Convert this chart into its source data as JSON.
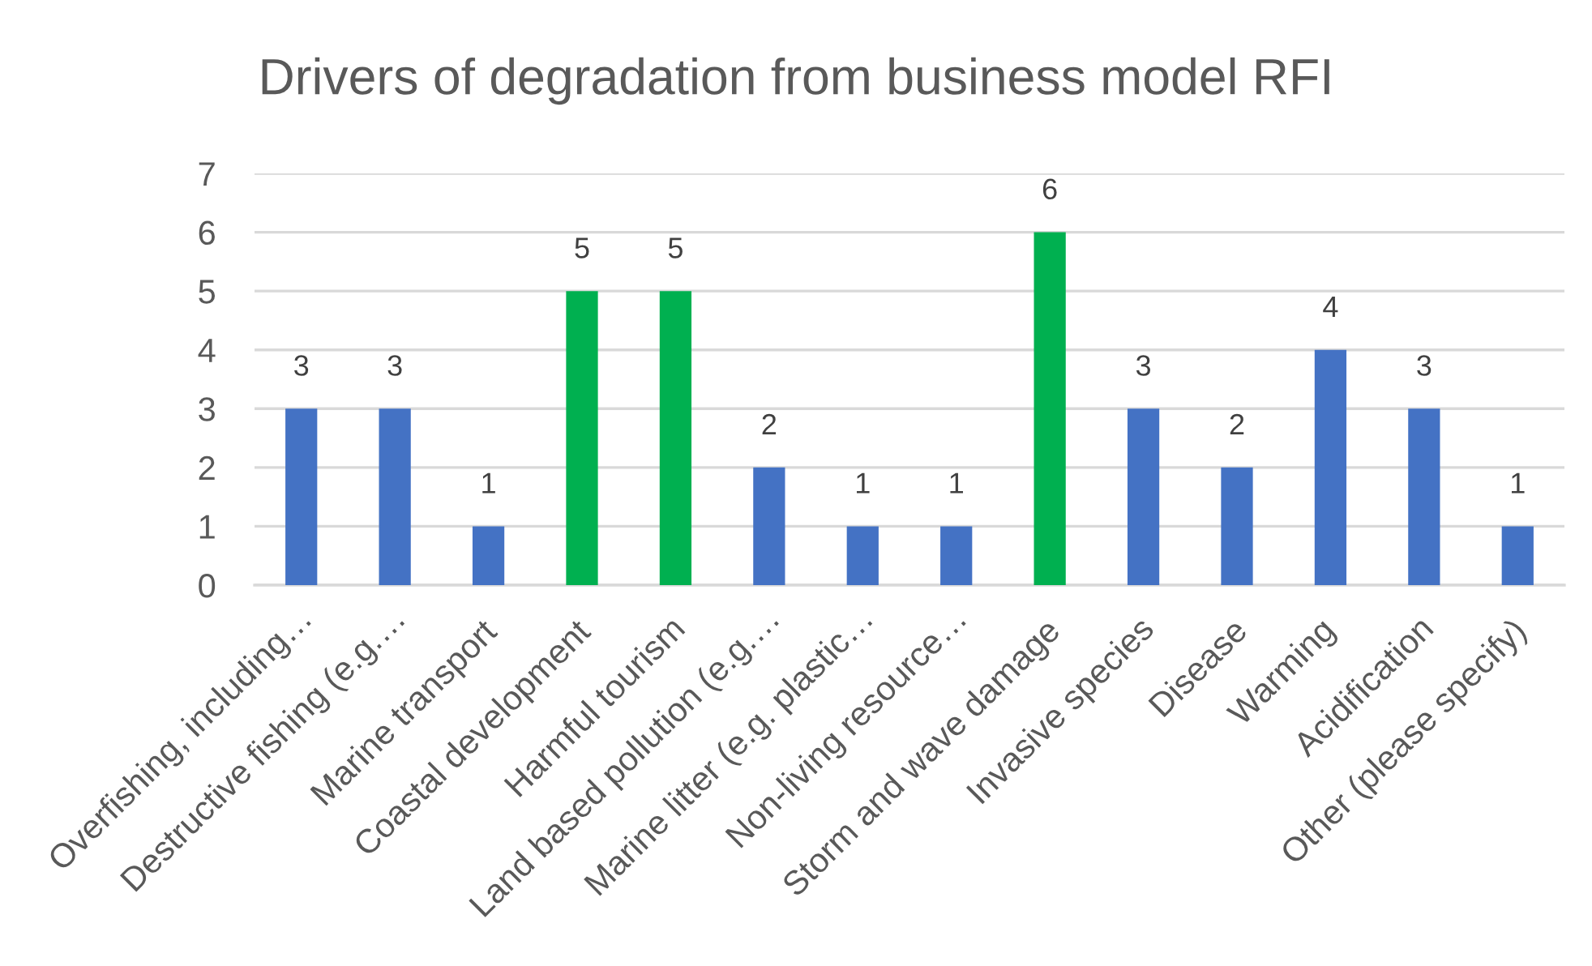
{
  "chart_data": {
    "type": "bar",
    "title": "Drivers of degradation from business model RFI",
    "categories": [
      "Overfishing, including…",
      "Destructive fishing (e.g.…",
      "Marine transport",
      "Coastal development",
      "Harmful tourism",
      "Land based pollution (e.g.…",
      "Marine litter (e.g. plastic…",
      "Non-living resource…",
      "Storm and wave damage",
      "Invasive species",
      "Disease",
      "Warming",
      "Acidification",
      "Other (please specify)"
    ],
    "values": [
      3,
      3,
      1,
      5,
      5,
      2,
      1,
      1,
      6,
      3,
      2,
      4,
      3,
      1
    ],
    "colors": [
      "#4472c4",
      "#4472c4",
      "#4472c4",
      "#00b050",
      "#00b050",
      "#4472c4",
      "#4472c4",
      "#4472c4",
      "#00b050",
      "#4472c4",
      "#4472c4",
      "#4472c4",
      "#4472c4",
      "#4472c4"
    ],
    "ylim": [
      0,
      7
    ],
    "yticks": [
      0,
      1,
      2,
      3,
      4,
      5,
      6,
      7
    ],
    "grid": "y",
    "data_labels": true,
    "legend": false
  }
}
